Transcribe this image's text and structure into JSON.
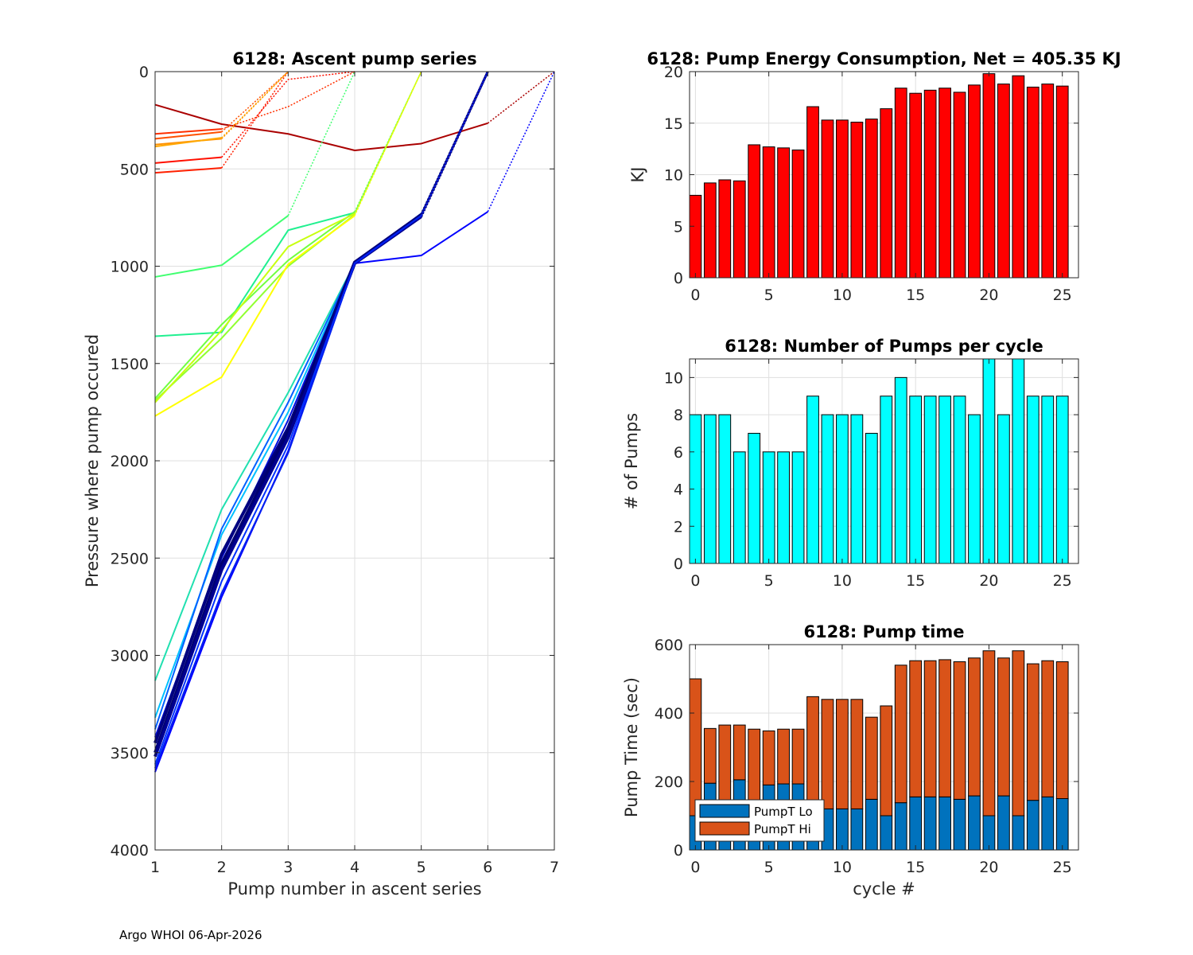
{
  "footer": "Argo WHOI 06-Apr-2026",
  "chart_data": [
    {
      "id": "ascent",
      "type": "line",
      "title": "6128: Ascent pump series",
      "xlabel": "Pump number in ascent series",
      "ylabel": "Pressure where pump occured",
      "xlim": [
        1,
        7
      ],
      "ylim": [
        0,
        4000
      ],
      "y_reversed": true,
      "xticks": [
        1,
        2,
        3,
        4,
        5,
        6,
        7
      ],
      "yticks": [
        0,
        500,
        1000,
        1500,
        2000,
        2500,
        3000,
        3500,
        4000
      ],
      "grid": true,
      "series": [
        {
          "color": "#aa0000",
          "x": [
            1,
            2,
            3,
            4,
            5,
            6
          ],
          "y": [
            170,
            270,
            320,
            405,
            370,
            265
          ],
          "dotted_tail": [
            [
              6,
              265
            ],
            [
              7,
              0
            ]
          ]
        },
        {
          "color": "#ff2000",
          "x": [
            1,
            2
          ],
          "y": [
            520,
            495
          ],
          "dotted_tail": [
            [
              2,
              495
            ],
            [
              3,
              0
            ]
          ],
          "solid_to_top": true
        },
        {
          "color": "#ff1000",
          "x": [
            1,
            2
          ],
          "y": [
            470,
            440
          ],
          "dotted_tail": [
            [
              2,
              440
            ],
            [
              3,
              40
            ],
            [
              4,
              0
            ]
          ]
        },
        {
          "color": "#ff3000",
          "x": [
            1,
            2
          ],
          "y": [
            320,
            295
          ],
          "dotted_tail": [
            [
              2,
              295
            ],
            [
              3,
              180
            ],
            [
              4,
              0
            ]
          ]
        },
        {
          "color": "#ff5000",
          "x": [
            1,
            2
          ],
          "y": [
            345,
            310
          ],
          "dotted_tail": [
            [
              2,
              310
            ],
            [
              3,
              0
            ]
          ]
        },
        {
          "color": "#ff9000",
          "x": [
            1,
            2
          ],
          "y": [
            375,
            345
          ],
          "dotted_tail": [
            [
              2,
              345
            ],
            [
              3,
              0
            ]
          ]
        },
        {
          "color": "#ffa800",
          "x": [
            1,
            2
          ],
          "y": [
            385,
            340
          ],
          "dotted_tail": [
            [
              2,
              340
            ],
            [
              3,
              0
            ]
          ]
        },
        {
          "color": "#40ff70",
          "x": [
            1,
            2,
            3
          ],
          "y": [
            1055,
            995,
            740
          ],
          "dotted_tail": [
            [
              3,
              740
            ],
            [
              4,
              0
            ]
          ]
        },
        {
          "color": "#20f090",
          "x": [
            1,
            2,
            3,
            4
          ],
          "y": [
            1360,
            1340,
            815,
            725
          ],
          "dotted_tail": [
            [
              4,
              725
            ],
            [
              5,
              0
            ]
          ]
        },
        {
          "color": "#70ff40",
          "x": [
            1,
            2,
            3,
            4
          ],
          "y": [
            1680,
            1300,
            970,
            720
          ],
          "dotted_tail": [
            [
              4,
              720
            ],
            [
              5,
              0
            ]
          ]
        },
        {
          "color": "#90ff30",
          "x": [
            1,
            2,
            3,
            4
          ],
          "y": [
            1690,
            1370,
            1000,
            735
          ],
          "dotted_tail": [
            [
              4,
              735
            ],
            [
              5,
              0
            ]
          ]
        },
        {
          "color": "#c8ff10",
          "x": [
            1,
            2,
            3,
            4
          ],
          "y": [
            1700,
            1330,
            900,
            730
          ],
          "dotted_tail": [
            [
              4,
              730
            ],
            [
              5,
              0
            ]
          ]
        },
        {
          "color": "#ffff00",
          "x": [
            1,
            2,
            3,
            4
          ],
          "y": [
            1770,
            1570,
            990,
            740
          ],
          "dotted_tail": [
            [
              4,
              740
            ],
            [
              5,
              0
            ]
          ]
        },
        {
          "color": "#0000ff",
          "x": [
            1,
            2,
            3,
            4,
            5,
            6
          ],
          "y": [
            3600,
            2700,
            1950,
            985,
            945,
            720
          ],
          "dotted_tail": [
            [
              6,
              720
            ],
            [
              7,
              0
            ]
          ]
        },
        {
          "color": "#20e0b0",
          "x": [
            1,
            2,
            3,
            4,
            5
          ],
          "y": [
            3130,
            2250,
            1650,
            985,
            730
          ],
          "dotted_tail": [
            [
              5,
              730
            ],
            [
              6,
              0
            ]
          ]
        },
        {
          "color": "#00c0ff",
          "x": [
            1,
            2,
            3,
            4,
            5
          ],
          "y": [
            3320,
            2380,
            1750,
            985,
            730
          ],
          "dotted_tail": [
            [
              5,
              730
            ],
            [
              6,
              0
            ]
          ]
        },
        {
          "color": "#0060ff",
          "x": [
            1,
            2,
            3,
            4,
            5
          ],
          "y": [
            3380,
            2350,
            1700,
            985,
            730
          ],
          "dotted_tail": [
            [
              5,
              730
            ],
            [
              6,
              0
            ]
          ]
        },
        {
          "color": "#0010e0",
          "x": [
            1,
            2,
            3,
            4,
            5
          ],
          "y": [
            3420,
            2500,
            1790,
            985,
            730
          ],
          "dotted_tail": [
            [
              5,
              730
            ],
            [
              6,
              0
            ]
          ]
        },
        {
          "color": "#000080",
          "x": [
            1,
            2,
            3,
            4,
            5
          ],
          "y": [
            3450,
            2480,
            1830,
            980,
            735
          ],
          "dotted_tail": [
            [
              5,
              735
            ],
            [
              6,
              0
            ]
          ],
          "thick": true
        },
        {
          "color": "#000070",
          "x": [
            1,
            2,
            3,
            4,
            5
          ],
          "y": [
            3500,
            2530,
            1850,
            980,
            740
          ],
          "dotted_tail": [
            [
              5,
              740
            ],
            [
              6,
              0
            ]
          ],
          "thick": true
        },
        {
          "color": "#000090",
          "x": [
            1,
            2,
            3,
            4,
            5
          ],
          "y": [
            3520,
            2560,
            1880,
            985,
            745
          ],
          "dotted_tail": [
            [
              5,
              745
            ],
            [
              6,
              0
            ]
          ],
          "thick": true
        },
        {
          "color": "#0030ff",
          "x": [
            1,
            2,
            3,
            4,
            5
          ],
          "y": [
            3560,
            2620,
            1920,
            985,
            740
          ],
          "dotted_tail": [
            [
              5,
              740
            ],
            [
              6,
              0
            ]
          ]
        },
        {
          "color": "#0020f0",
          "x": [
            1,
            2,
            3,
            4,
            5
          ],
          "y": [
            3580,
            2680,
            1960,
            985,
            740
          ],
          "dotted_tail": [
            [
              5,
              740
            ],
            [
              6,
              0
            ]
          ]
        }
      ]
    },
    {
      "id": "energy",
      "type": "bar",
      "title": "6128: Pump Energy Consumption,  Net = 405.35 KJ",
      "xlabel": "",
      "ylabel": "KJ",
      "xlim": [
        -0.4,
        26.1
      ],
      "ylim": [
        0,
        20
      ],
      "xticks": [
        0,
        5,
        10,
        15,
        20,
        25
      ],
      "yticks": [
        0,
        5,
        10,
        15,
        20
      ],
      "grid": true,
      "color": "#ff0000",
      "categories": [
        0,
        1,
        2,
        3,
        4,
        5,
        6,
        7,
        8,
        9,
        10,
        11,
        12,
        13,
        14,
        15,
        16,
        17,
        18,
        19,
        20,
        21,
        22,
        23,
        24,
        25
      ],
      "values": [
        8.0,
        9.2,
        9.5,
        9.4,
        12.9,
        12.7,
        12.6,
        12.4,
        16.6,
        15.3,
        15.3,
        15.1,
        15.4,
        16.4,
        18.4,
        17.9,
        18.2,
        18.4,
        18.0,
        18.7,
        19.8,
        18.8,
        19.6,
        18.5,
        18.8,
        18.6
      ]
    },
    {
      "id": "pumps",
      "type": "bar",
      "title": "6128: Number of Pumps per cycle",
      "xlabel": "",
      "ylabel": "# of Pumps",
      "xlim": [
        -0.4,
        26.1
      ],
      "ylim": [
        0,
        11
      ],
      "xticks": [
        0,
        5,
        10,
        15,
        20,
        25
      ],
      "yticks": [
        0,
        2,
        4,
        6,
        8,
        10
      ],
      "grid": true,
      "color": "#00ffff",
      "categories": [
        0,
        1,
        2,
        3,
        4,
        5,
        6,
        7,
        8,
        9,
        10,
        11,
        12,
        13,
        14,
        15,
        16,
        17,
        18,
        19,
        20,
        21,
        22,
        23,
        24,
        25
      ],
      "values": [
        8,
        8,
        8,
        6,
        7,
        6,
        6,
        6,
        9,
        8,
        8,
        8,
        7,
        9,
        10,
        9,
        9,
        9,
        9,
        8,
        11,
        8,
        11,
        9,
        9,
        9
      ]
    },
    {
      "id": "pumptime",
      "type": "bar",
      "stacked": true,
      "title": "6128: Pump time",
      "xlabel": "cycle #",
      "ylabel": "Pump Time (sec)",
      "xlim": [
        -0.4,
        26.1
      ],
      "ylim": [
        0,
        600
      ],
      "xticks": [
        0,
        5,
        10,
        15,
        20,
        25
      ],
      "yticks": [
        0,
        200,
        400,
        600
      ],
      "grid": true,
      "legend": "bottom-left",
      "categories": [
        0,
        1,
        2,
        3,
        4,
        5,
        6,
        7,
        8,
        9,
        10,
        11,
        12,
        13,
        14,
        15,
        16,
        17,
        18,
        19,
        20,
        21,
        22,
        23,
        24,
        25
      ],
      "series": [
        {
          "name": "PumpT Lo",
          "color": "#0072bd",
          "values": [
            100,
            195,
            100,
            205,
            100,
            190,
            193,
            193,
            120,
            120,
            120,
            120,
            148,
            100,
            138,
            155,
            155,
            155,
            148,
            158,
            100,
            158,
            100,
            145,
            155,
            150
          ]
        },
        {
          "name": "PumpT Hi",
          "color": "#d95319",
          "values": [
            400,
            160,
            265,
            160,
            253,
            158,
            160,
            160,
            328,
            320,
            320,
            320,
            240,
            321,
            402,
            398,
            398,
            401,
            402,
            403,
            482,
            403,
            482,
            399,
            398,
            400
          ]
        }
      ]
    }
  ]
}
